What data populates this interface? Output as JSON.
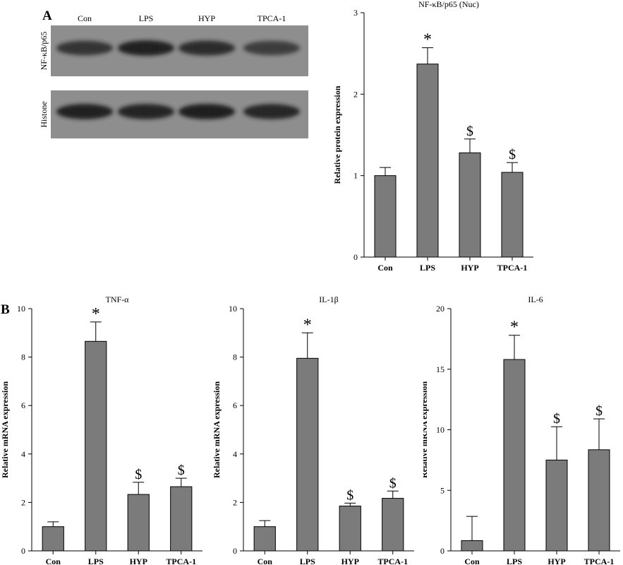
{
  "panel_labels": {
    "a": "A",
    "b": "B"
  },
  "blot": {
    "lanes": [
      "Con",
      "LPS",
      "HYP",
      "TPCA-1"
    ],
    "rows": [
      {
        "label": "NF-κB/p65",
        "band_intensity": [
          0.78,
          0.95,
          0.85,
          0.7
        ]
      },
      {
        "label": "Histone",
        "band_intensity": [
          0.95,
          0.92,
          0.97,
          0.9
        ]
      }
    ]
  },
  "colors": {
    "bar": "#7b7b7b",
    "axis": "#000000",
    "blot_bg": "#8e8e8e",
    "band": "#1e1e1e"
  },
  "chart_data": [
    {
      "type": "bar",
      "title": "NF-κB/p65 (Nuc)",
      "xlabel": "",
      "ylabel": "Relative protein expression",
      "categories": [
        "Con",
        "LPS",
        "HYP",
        "TPCA-1"
      ],
      "values": [
        1.0,
        2.37,
        1.28,
        1.04
      ],
      "errors": [
        0.1,
        0.2,
        0.17,
        0.12
      ],
      "annotations": [
        "",
        "*",
        "$",
        "$"
      ],
      "ylim": [
        0,
        3
      ],
      "yticks": [
        0,
        1,
        2,
        3
      ],
      "ytick_labels": [
        "0",
        "1",
        "2",
        "3"
      ]
    },
    {
      "type": "bar",
      "title": "TNF-α",
      "xlabel": "",
      "ylabel": "Relative mRNA expression",
      "categories": [
        "Con",
        "LPS",
        "HYP",
        "TPCA-1"
      ],
      "values": [
        1.0,
        8.65,
        2.33,
        2.65
      ],
      "errors": [
        0.2,
        0.8,
        0.5,
        0.35
      ],
      "annotations": [
        "",
        "*",
        "$",
        "$"
      ],
      "ylim": [
        0,
        10
      ],
      "yticks": [
        0,
        2,
        4,
        6,
        8,
        10
      ],
      "ytick_labels": [
        "0",
        "2",
        "4",
        "6",
        "8",
        "10"
      ]
    },
    {
      "type": "bar",
      "title": "IL-1β",
      "xlabel": "",
      "ylabel": "Relative mRNA expression",
      "categories": [
        "Con",
        "LPS",
        "HYP",
        "TPCA-1"
      ],
      "values": [
        1.0,
        7.95,
        1.85,
        2.17
      ],
      "errors": [
        0.25,
        1.05,
        0.12,
        0.3
      ],
      "annotations": [
        "",
        "*",
        "$",
        "$"
      ],
      "ylim": [
        0,
        10
      ],
      "yticks": [
        0,
        2,
        4,
        6,
        8,
        10
      ],
      "ytick_labels": [
        "0",
        "2",
        "4",
        "6",
        "8",
        "10"
      ]
    },
    {
      "type": "bar",
      "title": "IL-6",
      "xlabel": "",
      "ylabel": "Relative mRNA expression",
      "categories": [
        "Con",
        "LPS",
        "HYP",
        "TPCA-1"
      ],
      "values": [
        0.85,
        15.8,
        7.5,
        8.35
      ],
      "errors": [
        2.0,
        2.0,
        2.75,
        2.55
      ],
      "annotations": [
        "",
        "*",
        "$",
        "$"
      ],
      "ylim": [
        0,
        20
      ],
      "yticks": [
        0,
        5,
        10,
        15,
        20
      ],
      "ytick_labels": [
        "0",
        "5",
        "10",
        "15",
        "20"
      ]
    }
  ]
}
